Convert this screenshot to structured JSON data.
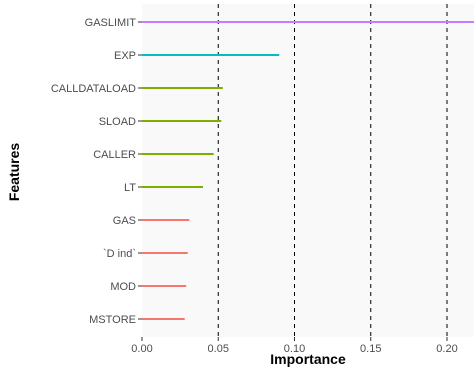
{
  "chart_data": {
    "type": "bar",
    "orientation": "horizontal",
    "xlabel": "Importance",
    "ylabel": "Features",
    "xlim": [
      0,
      0.22
    ],
    "x_ticks": [
      0.0,
      0.05,
      0.1,
      0.15,
      0.2
    ],
    "x_tick_labels": [
      "0.00",
      "0.05",
      "0.10",
      "0.15",
      "0.20"
    ],
    "categories": [
      "GASLIMIT",
      "EXP",
      "CALLDATALOAD",
      "SLOAD",
      "CALLER",
      "LT",
      "GAS",
      "`D ind`",
      "MOD",
      "MSTORE"
    ],
    "values": [
      0.225,
      0.09,
      0.053,
      0.052,
      0.047,
      0.04,
      0.031,
      0.03,
      0.029,
      0.028
    ],
    "colors": [
      "#c77cff",
      "#00bfc4",
      "#7cae00",
      "#7cae00",
      "#7cae00",
      "#7cae00",
      "#f8766d",
      "#f8766d",
      "#f8766d",
      "#f8766d"
    ],
    "grid": "dashed vertical lines at x ticks",
    "panel_background": "#f9f9f9",
    "legend": "none"
  }
}
